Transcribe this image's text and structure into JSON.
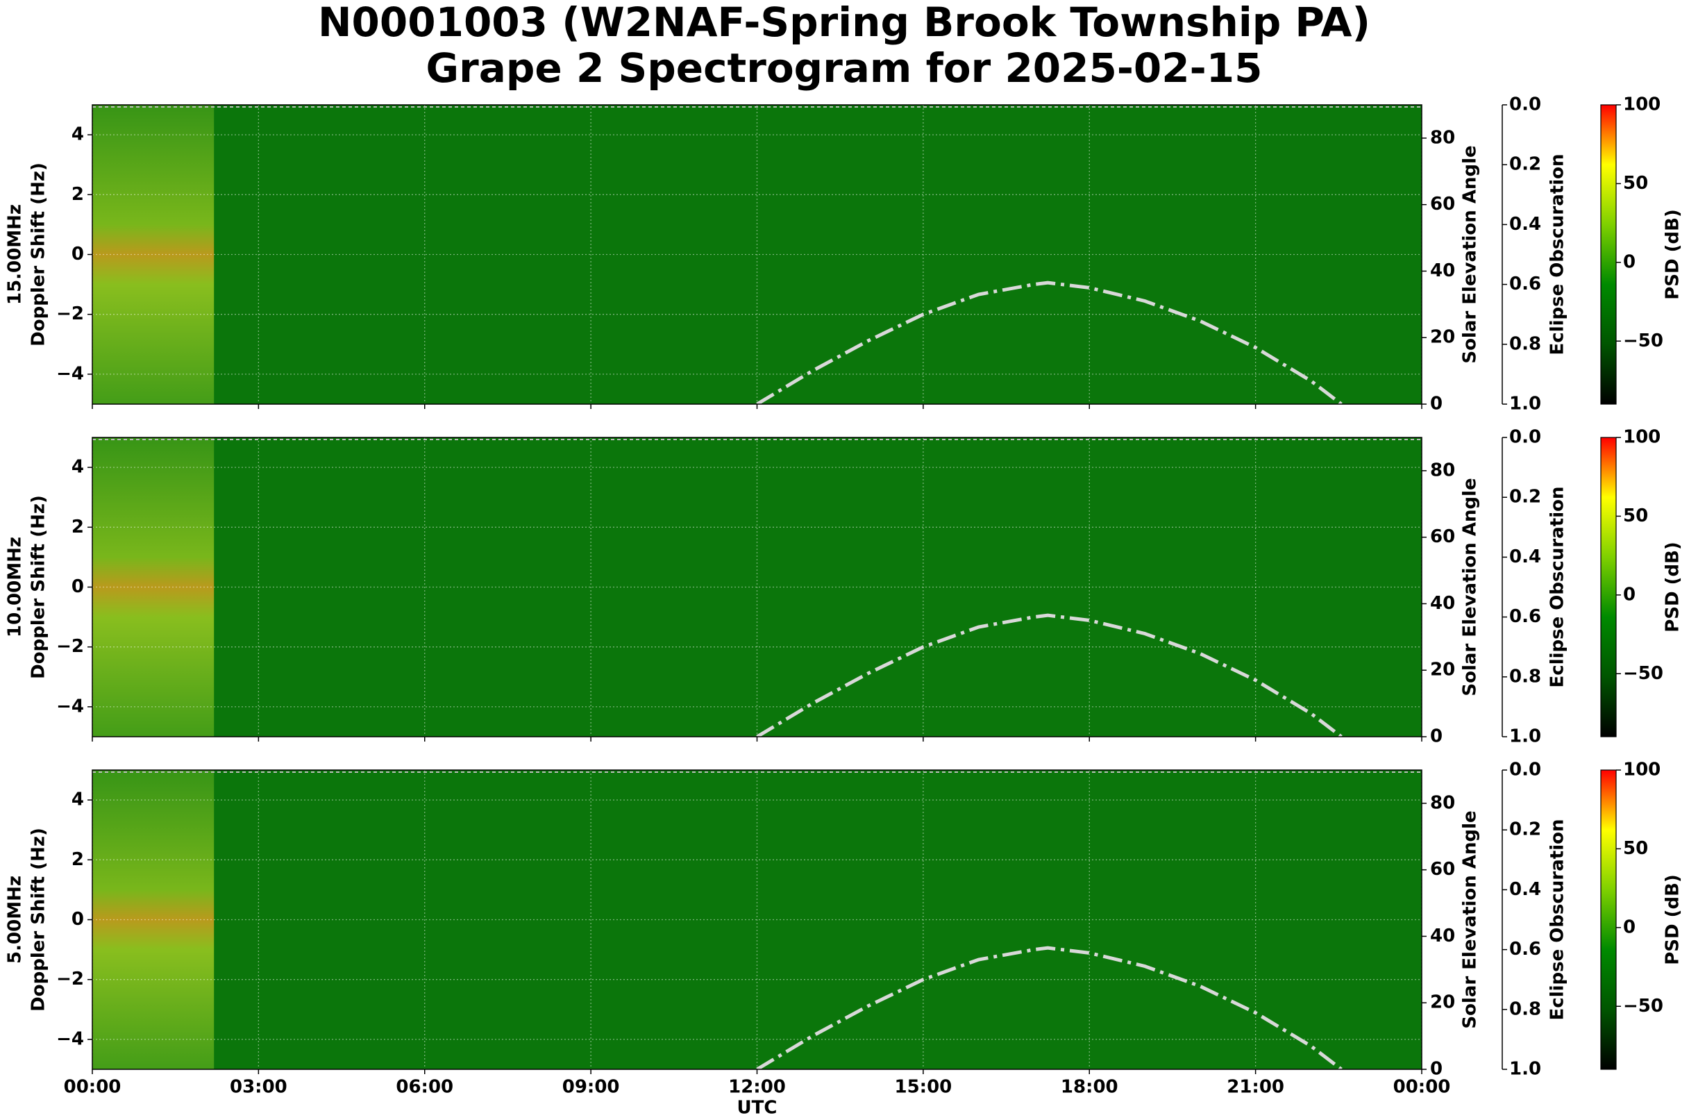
{
  "title": "N0001003 (W2NAF-Spring Brook Township PA)",
  "subtitle": "Grape 2 Spectrogram for 2025-02-15",
  "chart_data": [
    {
      "type": "spectrogram",
      "frequency_label": "15.00MHz",
      "ylabel": "Doppler Shift (Hz)",
      "xlim": [
        0,
        24
      ],
      "xticks": [
        0,
        3,
        6,
        9,
        12,
        15,
        18,
        21,
        24
      ],
      "ylim": [
        -5,
        5
      ],
      "yticks": [
        {
          "value": -4,
          "label": "−4"
        },
        {
          "value": -2,
          "label": "−2"
        },
        0,
        2,
        4
      ],
      "y2label": "Solar Elevation Angle",
      "y2lim": [
        0,
        90
      ],
      "y2ticks": [
        0,
        20,
        40,
        60,
        80
      ],
      "y3label": "Eclipse Obscuration",
      "y3lim": [
        1,
        0
      ],
      "y3ticks": [
        {
          "value": 0,
          "label": "0.0"
        },
        {
          "value": 0.2,
          "label": "0.2"
        },
        {
          "value": 0.4,
          "label": "0.4"
        },
        {
          "value": 0.6,
          "label": "0.6"
        },
        {
          "value": 0.8,
          "label": "0.8"
        },
        {
          "value": 1,
          "label": "1.0"
        }
      ],
      "solar_elevation": {
        "x": [
          12,
          13,
          14,
          15,
          16,
          17,
          17.25,
          18,
          19,
          20,
          21,
          22,
          22.55
        ],
        "values": [
          0,
          10,
          19,
          27,
          33,
          36,
          36.5,
          35,
          31,
          25,
          17,
          7,
          0
        ],
        "color": "#d9d9d9",
        "axis": "y2"
      },
      "colorbar": {
        "label": "PSD (dB)",
        "lim": [
          -90,
          100
        ],
        "ticks": [
          100,
          50,
          0,
          {
            "value": -50,
            "label": "−50"
          }
        ],
        "colors": [
          "#000000",
          "#005500",
          "#008a00",
          "#7fd000",
          "#ffff00",
          "#ff0000"
        ]
      },
      "grid": true
    },
    {
      "type": "spectrogram",
      "frequency_label": "10.00MHz",
      "ylabel": "Doppler Shift (Hz)",
      "xlim": [
        0,
        24
      ],
      "xticks": [
        0,
        3,
        6,
        9,
        12,
        15,
        18,
        21,
        24
      ],
      "ylim": [
        -5,
        5
      ],
      "yticks": [
        {
          "value": -4,
          "label": "−4"
        },
        {
          "value": -2,
          "label": "−2"
        },
        0,
        2,
        4
      ],
      "y2label": "Solar Elevation Angle",
      "y2lim": [
        0,
        90
      ],
      "y2ticks": [
        0,
        20,
        40,
        60,
        80
      ],
      "y3label": "Eclipse Obscuration",
      "y3lim": [
        1,
        0
      ],
      "y3ticks": [
        {
          "value": 0,
          "label": "0.0"
        },
        {
          "value": 0.2,
          "label": "0.2"
        },
        {
          "value": 0.4,
          "label": "0.4"
        },
        {
          "value": 0.6,
          "label": "0.6"
        },
        {
          "value": 0.8,
          "label": "0.8"
        },
        {
          "value": 1,
          "label": "1.0"
        }
      ],
      "solar_elevation": {
        "x": [
          12,
          13,
          14,
          15,
          16,
          17,
          17.25,
          18,
          19,
          20,
          21,
          22,
          22.55
        ],
        "values": [
          0,
          10,
          19,
          27,
          33,
          36,
          36.5,
          35,
          31,
          25,
          17,
          7,
          0
        ],
        "color": "#d9d9d9",
        "axis": "y2"
      },
      "colorbar": {
        "label": "PSD (dB)",
        "lim": [
          -90,
          100
        ],
        "ticks": [
          100,
          50,
          0,
          {
            "value": -50,
            "label": "−50"
          }
        ],
        "colors": [
          "#000000",
          "#005500",
          "#008a00",
          "#7fd000",
          "#ffff00",
          "#ff0000"
        ]
      },
      "grid": true
    },
    {
      "type": "spectrogram",
      "frequency_label": "5.00MHz",
      "ylabel": "Doppler Shift (Hz)",
      "xlabel": "UTC",
      "xlim": [
        0,
        24
      ],
      "xticks": [
        {
          "value": 0,
          "label": "00:00"
        },
        {
          "value": 3,
          "label": "03:00"
        },
        {
          "value": 6,
          "label": "06:00"
        },
        {
          "value": 9,
          "label": "09:00"
        },
        {
          "value": 12,
          "label": "12:00"
        },
        {
          "value": 15,
          "label": "15:00"
        },
        {
          "value": 18,
          "label": "18:00"
        },
        {
          "value": 21,
          "label": "21:00"
        },
        {
          "value": 24,
          "label": "00:00"
        }
      ],
      "ylim": [
        -5,
        5
      ],
      "yticks": [
        {
          "value": -4,
          "label": "−4"
        },
        {
          "value": -2,
          "label": "−2"
        },
        0,
        2,
        4
      ],
      "y2label": "Solar Elevation Angle",
      "y2lim": [
        0,
        90
      ],
      "y2ticks": [
        0,
        20,
        40,
        60,
        80
      ],
      "y3label": "Eclipse Obscuration",
      "y3lim": [
        1,
        0
      ],
      "y3ticks": [
        {
          "value": 0,
          "label": "0.0"
        },
        {
          "value": 0.2,
          "label": "0.2"
        },
        {
          "value": 0.4,
          "label": "0.4"
        },
        {
          "value": 0.6,
          "label": "0.6"
        },
        {
          "value": 0.8,
          "label": "0.8"
        },
        {
          "value": 1,
          "label": "1.0"
        }
      ],
      "solar_elevation": {
        "x": [
          12,
          13,
          14,
          15,
          16,
          17,
          17.25,
          18,
          19,
          20,
          21,
          22,
          22.55
        ],
        "values": [
          0,
          10,
          19,
          27,
          33,
          36,
          36.5,
          35,
          31,
          25,
          17,
          7,
          0
        ],
        "color": "#d9d9d9",
        "axis": "y2"
      },
      "colorbar": {
        "label": "PSD (dB)",
        "lim": [
          -90,
          100
        ],
        "ticks": [
          100,
          50,
          0,
          {
            "value": -50,
            "label": "−50"
          }
        ],
        "colors": [
          "#000000",
          "#005500",
          "#008a00",
          "#7fd000",
          "#ffff00",
          "#ff0000"
        ]
      },
      "grid": true
    }
  ]
}
